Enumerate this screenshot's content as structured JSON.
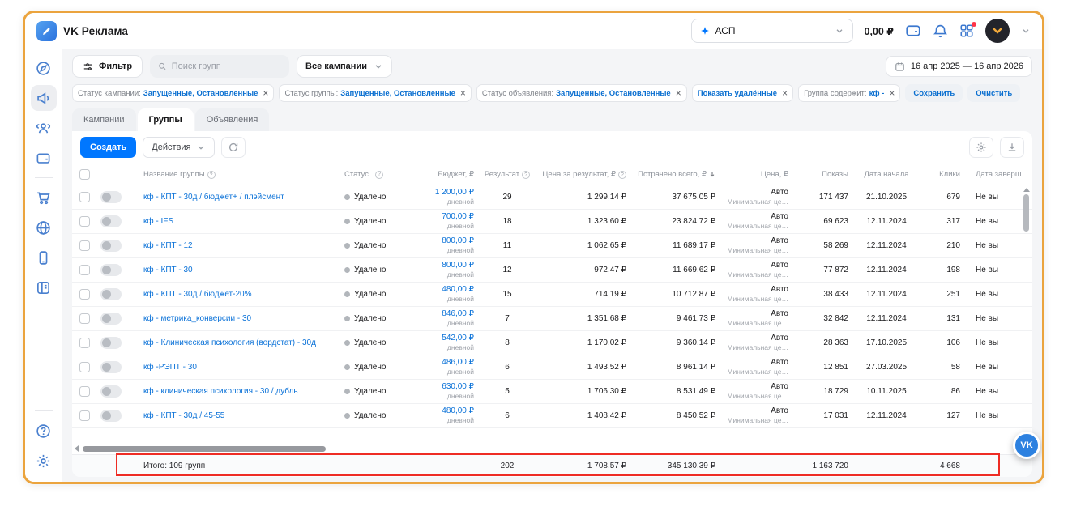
{
  "header": {
    "brand": "VK Реклама",
    "account_select": "АСП",
    "balance": "0,00 ₽"
  },
  "filter_bar": {
    "filter_button": "Фильтр",
    "search_placeholder": "Поиск групп",
    "campaigns_select": "Все кампании",
    "date_range": "16 апр 2025 — 16 апр 2026"
  },
  "filter_chips": {
    "chips": [
      {
        "label": "Статус кампании:",
        "value": "Запущенные, Остановленные"
      },
      {
        "label": "Статус группы:",
        "value": "Запущенные, Остановленные"
      },
      {
        "label": "Статус объявления:",
        "value": "Запущенные, Остановленные"
      },
      {
        "label": "",
        "value": "Показать удалённые"
      },
      {
        "label": "Группа содержит:",
        "value": "кф -"
      }
    ],
    "save_button": "Сохранить",
    "clear_button": "Очистить"
  },
  "tabs": [
    {
      "label": "Кампании",
      "active": false
    },
    {
      "label": "Группы",
      "active": true
    },
    {
      "label": "Объявления",
      "active": false
    }
  ],
  "toolbar": {
    "create_button": "Создать",
    "actions_button": "Действия"
  },
  "icons": {
    "sidebar": [
      "overview",
      "campaigns",
      "audiences",
      "budget",
      "cart",
      "sites",
      "mobile-apps",
      "catalog",
      "help",
      "settings"
    ],
    "fab_label": "VK"
  },
  "table": {
    "columns": {
      "name": "Название группы",
      "status": "Статус",
      "budget": "Бюджет, ₽",
      "result": "Результат",
      "cpr": "Цена за результат, ₽",
      "spent": "Потрачено всего, ₽",
      "price": "Цена, ₽",
      "impressions": "Показы",
      "date_start": "Дата начала",
      "clicks": "Клики",
      "date_end": "Дата заверш"
    },
    "rows": [
      {
        "name": "кф - КПТ - 30д / бюджет+ / плэйсмент",
        "status": "Удалено",
        "budget": "1 200,00 ₽",
        "budget_period": "дневной",
        "result": "29",
        "cpr": "1 299,14 ₽",
        "spent": "37 675,05 ₽",
        "price": "Авто",
        "price_sub": "Минимальная це…",
        "impressions": "171 437",
        "date_start": "21.10.2025",
        "clicks": "679",
        "date_end": "Не вы"
      },
      {
        "name": "кф - IFS",
        "status": "Удалено",
        "budget": "700,00 ₽",
        "budget_period": "дневной",
        "result": "18",
        "cpr": "1 323,60 ₽",
        "spent": "23 824,72 ₽",
        "price": "Авто",
        "price_sub": "Минимальная це…",
        "impressions": "69 623",
        "date_start": "12.11.2024",
        "clicks": "317",
        "date_end": "Не вы"
      },
      {
        "name": "кф - КПТ - 12",
        "status": "Удалено",
        "budget": "800,00 ₽",
        "budget_period": "дневной",
        "result": "11",
        "cpr": "1 062,65 ₽",
        "spent": "11 689,17 ₽",
        "price": "Авто",
        "price_sub": "Минимальная це…",
        "impressions": "58 269",
        "date_start": "12.11.2024",
        "clicks": "210",
        "date_end": "Не вы"
      },
      {
        "name": "кф - КПТ - 30",
        "status": "Удалено",
        "budget": "800,00 ₽",
        "budget_period": "дневной",
        "result": "12",
        "cpr": "972,47 ₽",
        "spent": "11 669,62 ₽",
        "price": "Авто",
        "price_sub": "Минимальная це…",
        "impressions": "77 872",
        "date_start": "12.11.2024",
        "clicks": "198",
        "date_end": "Не вы"
      },
      {
        "name": "кф - КПТ - 30д / бюджет-20%",
        "status": "Удалено",
        "budget": "480,00 ₽",
        "budget_period": "дневной",
        "result": "15",
        "cpr": "714,19 ₽",
        "spent": "10 712,87 ₽",
        "price": "Авто",
        "price_sub": "Минимальная це…",
        "impressions": "38 433",
        "date_start": "12.11.2024",
        "clicks": "251",
        "date_end": "Не вы"
      },
      {
        "name": "кф - метрика_конверсии - 30",
        "status": "Удалено",
        "budget": "846,00 ₽",
        "budget_period": "дневной",
        "result": "7",
        "cpr": "1 351,68 ₽",
        "spent": "9 461,73 ₽",
        "price": "Авто",
        "price_sub": "Минимальная це…",
        "impressions": "32 842",
        "date_start": "12.11.2024",
        "clicks": "131",
        "date_end": "Не вы"
      },
      {
        "name": "кф - Клиническая психология (вордстат) - 30д",
        "status": "Удалено",
        "budget": "542,00 ₽",
        "budget_period": "дневной",
        "result": "8",
        "cpr": "1 170,02 ₽",
        "spent": "9 360,14 ₽",
        "price": "Авто",
        "price_sub": "Минимальная це…",
        "impressions": "28 363",
        "date_start": "17.10.2025",
        "clicks": "106",
        "date_end": "Не вы"
      },
      {
        "name": "кф -РЭПТ - 30",
        "status": "Удалено",
        "budget": "486,00 ₽",
        "budget_period": "дневной",
        "result": "6",
        "cpr": "1 493,52 ₽",
        "spent": "8 961,14 ₽",
        "price": "Авто",
        "price_sub": "Минимальная це…",
        "impressions": "12 851",
        "date_start": "27.03.2025",
        "clicks": "58",
        "date_end": "Не вы"
      },
      {
        "name": "кф - клиническая психология - 30 / дубль",
        "status": "Удалено",
        "budget": "630,00 ₽",
        "budget_period": "дневной",
        "result": "5",
        "cpr": "1 706,30 ₽",
        "spent": "8 531,49 ₽",
        "price": "Авто",
        "price_sub": "Минимальная це…",
        "impressions": "18 729",
        "date_start": "10.11.2025",
        "clicks": "86",
        "date_end": "Не вы"
      },
      {
        "name": "кф - КПТ - 30д / 45-55",
        "status": "Удалено",
        "budget": "480,00 ₽",
        "budget_period": "дневной",
        "result": "6",
        "cpr": "1 408,42 ₽",
        "spent": "8 450,52 ₽",
        "price": "Авто",
        "price_sub": "Минимальная це…",
        "impressions": "17 031",
        "date_start": "12.11.2024",
        "clicks": "127",
        "date_end": "Не вы"
      }
    ],
    "footer": {
      "total_label": "Итого: 109 групп",
      "result": "202",
      "cpr": "1 708,57 ₽",
      "spent": "345 130,39 ₽",
      "impressions": "1 163 720",
      "clicks": "4 668"
    }
  }
}
